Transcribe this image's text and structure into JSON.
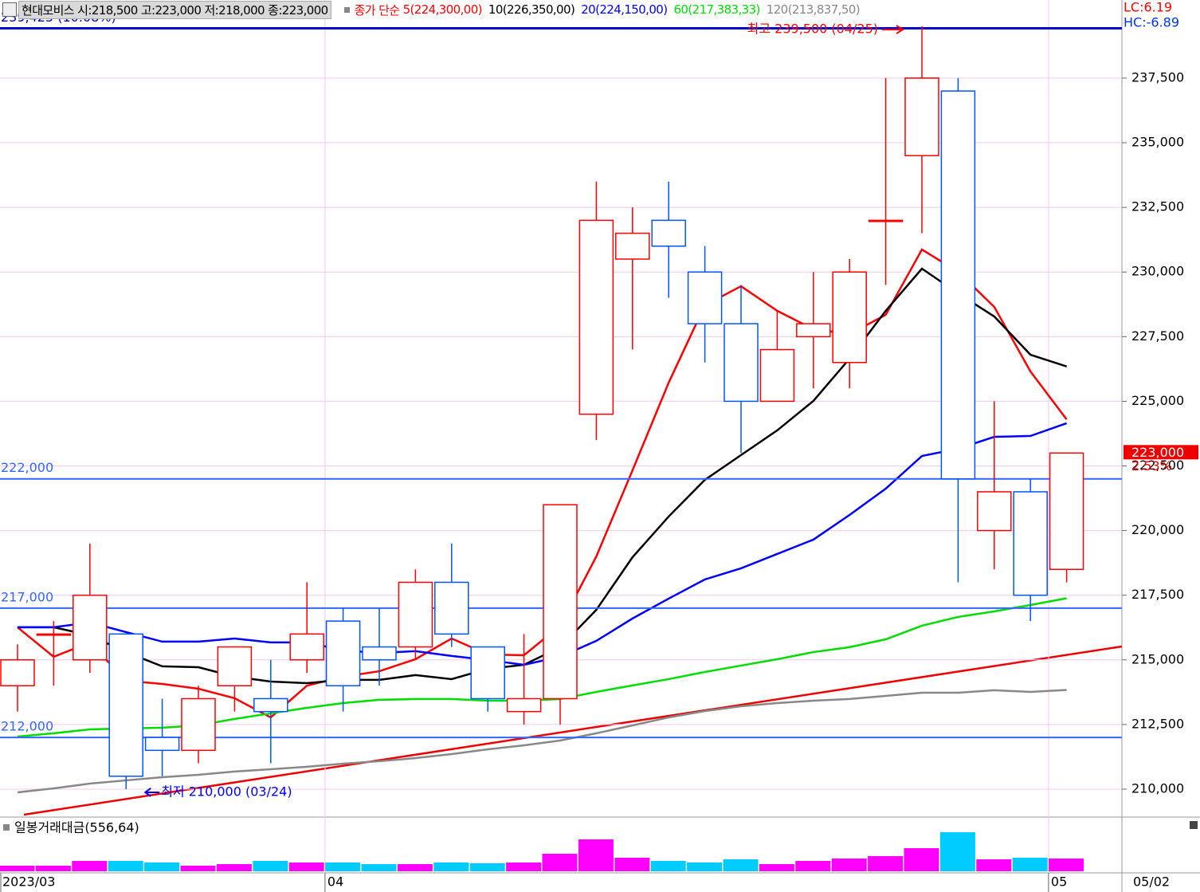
{
  "chart_data": {
    "type": "candlestick",
    "title": "현대모비스 시:218,500 고:223,000 저:218,000 종:223,000",
    "ma_label": "종가 단순",
    "open": [
      214000,
      216000,
      215000,
      216000,
      212000,
      211500,
      214000,
      213500,
      215000,
      216500,
      215500,
      215500,
      218000,
      215500,
      213000,
      213500,
      224500,
      230500,
      232000,
      230000,
      228000,
      225000,
      227500,
      226500,
      232000,
      234500,
      237000,
      220000,
      221500,
      218500
    ],
    "high": [
      215600,
      216500,
      219500,
      216000,
      213500,
      214000,
      215500,
      215000,
      218000,
      217000,
      217000,
      218500,
      219500,
      215500,
      216000,
      221000,
      233500,
      232500,
      233500,
      231000,
      229500,
      228500,
      230000,
      230500,
      237500,
      239500,
      237500,
      225000,
      222000,
      223000
    ],
    "low": [
      213000,
      214000,
      214500,
      210000,
      210500,
      211000,
      213000,
      211000,
      214500,
      213000,
      214000,
      215000,
      215500,
      213000,
      212500,
      212500,
      223500,
      227000,
      229000,
      226500,
      223000,
      225000,
      225500,
      225500,
      229500,
      231500,
      218000,
      218500,
      216500,
      218000
    ],
    "close": [
      215000,
      216000,
      217500,
      210500,
      211500,
      213500,
      215500,
      213000,
      216000,
      214000,
      215000,
      218000,
      216000,
      213500,
      213500,
      221000,
      232000,
      231500,
      231000,
      228000,
      225000,
      227000,
      228000,
      230000,
      232000,
      237500,
      222000,
      221500,
      217500,
      223000
    ],
    "up_color": "#ff0000",
    "down_color": "#0055ff",
    "series": [
      {
        "name": "5(224,300,00)",
        "color": "#ff0000",
        "values": [
          216260,
          215118,
          215673,
          214193,
          214070,
          213885,
          213515,
          212775,
          214000,
          214350,
          214560,
          215025,
          215825,
          215210,
          215180,
          216320,
          219000,
          222330,
          225720,
          228715,
          229450,
          228500,
          227790,
          227600,
          228345,
          230870,
          230010,
          228650,
          226155,
          224300
        ]
      },
      {
        "name": "10(226,350,00)",
        "color": "#000000",
        "values": [
          216260,
          216260,
          215950,
          215300,
          214750,
          214715,
          214350,
          214160,
          214100,
          214225,
          214225,
          214410,
          214255,
          214655,
          214810,
          215490,
          216935,
          218970,
          220545,
          221960,
          222920,
          223875,
          225015,
          226650,
          228500,
          230130,
          229175,
          228280,
          226800,
          226350
        ]
      },
      {
        "name": "20(224,150,00)",
        "color": "#0000ff",
        "values": [
          216260,
          216260,
          216445,
          216075,
          215705,
          215705,
          215825,
          215675,
          215675,
          215365,
          215270,
          215335,
          215150,
          214995,
          214810,
          215120,
          215735,
          216600,
          217370,
          218110,
          218540,
          219095,
          219650,
          220605,
          221620,
          222885,
          223165,
          223625,
          223660,
          224150
        ]
      },
      {
        "name": "60(217,383,33)",
        "color": "#00dd00",
        "values": [
          212035,
          212160,
          212310,
          212345,
          212375,
          212465,
          212715,
          212930,
          213145,
          213330,
          213455,
          213485,
          213485,
          213420,
          213420,
          213485,
          213760,
          214010,
          214255,
          214530,
          214780,
          215025,
          215300,
          215490,
          215795,
          216320,
          216660,
          216875,
          217120,
          217383.33
        ]
      },
      {
        "name": "120(213,837,50)",
        "color": "#888888",
        "values": [
          209875,
          210030,
          210215,
          210340,
          210460,
          210555,
          210680,
          210770,
          210865,
          210985,
          211080,
          211200,
          211355,
          211540,
          211695,
          211880,
          212160,
          212465,
          212775,
          213020,
          213205,
          213330,
          213420,
          213485,
          213605,
          213730,
          213730,
          213825,
          213760,
          213837.5
        ]
      }
    ],
    "ylim": [
      208920,
      240520
    ],
    "yticks": [
      {
        "value": 210000,
        "label": "210,000"
      },
      {
        "value": 212500,
        "label": "212,500"
      },
      {
        "value": 215000,
        "label": "215,000"
      },
      {
        "value": 217500,
        "label": "217,500"
      },
      {
        "value": 220000,
        "label": "220,000"
      },
      {
        "value": 222500,
        "label": "222,500"
      },
      {
        "value": 225000,
        "label": "225,000"
      },
      {
        "value": 227500,
        "label": "227,500"
      },
      {
        "value": 230000,
        "label": "230,000"
      },
      {
        "value": 232500,
        "label": "232,500"
      },
      {
        "value": 235000,
        "label": "235,000"
      },
      {
        "value": 237500,
        "label": "237,500"
      }
    ],
    "grid": true,
    "hlines": [
      {
        "value": 239425,
        "label": "239,425 (10.08%)",
        "color": "#0000cc"
      },
      {
        "value": 222000,
        "label": "222,000",
        "color": "#3366ff"
      },
      {
        "value": 217000,
        "label": "217,000",
        "color": "#3366ff"
      },
      {
        "value": 212000,
        "label": "212,000",
        "color": "#3366ff"
      }
    ],
    "annotations": [
      {
        "text": "최고 239,500 (04/25)",
        "index": 25,
        "value": 239500,
        "color": "#ff0000",
        "side": "left"
      },
      {
        "text": "최저 210,000 (03/24)",
        "index": 3,
        "value": 210000,
        "color": "#0000ff",
        "side": "right"
      }
    ],
    "current": {
      "value": 223000,
      "label": "223,000",
      "change": "2.53%"
    },
    "lc": "LC:6.19",
    "hc": "HC:-6.89",
    "x_labels": [
      {
        "index": 0,
        "label": "2023/03"
      },
      {
        "index": 9,
        "label": "04"
      },
      {
        "index": 29,
        "label": "05"
      }
    ],
    "current_date": "05/02",
    "volume": {
      "title": "일봉거래대금(556,64)",
      "values": [
        244,
        244,
        452,
        452,
        383,
        244,
        313,
        452,
        383,
        383,
        313,
        313,
        383,
        348,
        383,
        765,
        1392,
        592,
        452,
        383,
        522,
        313,
        452,
        557,
        661,
        1009,
        1705,
        522,
        592,
        556.64
      ],
      "ylim": [
        0,
        2366
      ],
      "up_color": "#ff00ff",
      "down_color": "#00ccff"
    }
  }
}
